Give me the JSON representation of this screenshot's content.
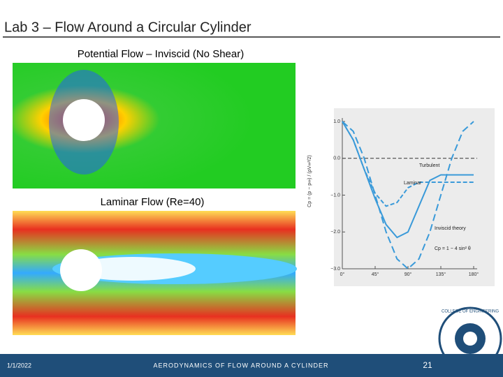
{
  "slide": {
    "title": "Lab 3 – Flow Around a Circular Cylinder",
    "panels": [
      {
        "caption": "Potential Flow – Inviscid (No Shear)"
      },
      {
        "caption": "Laminar Flow (Re=40)"
      }
    ],
    "footer": {
      "date": "1/1/2022",
      "subject": "AERODYNAMICS OF FLOW AROUND A CYLINDER",
      "page": "21"
    },
    "logo": {
      "text": "COLLEGE OF ENGINEERING"
    }
  },
  "chart_data": {
    "type": "line",
    "y_label": "Cp = (p − p∞) / (ρV∞²/2)",
    "x": [
      0,
      15,
      30,
      45,
      60,
      75,
      90,
      105,
      120,
      135,
      150,
      165,
      180
    ],
    "xlim": [
      0,
      180
    ],
    "xticks": [
      {
        "value": 0,
        "label": "0°"
      },
      {
        "value": 45,
        "label": "45°"
      },
      {
        "value": 90,
        "label": "90°"
      },
      {
        "value": 135,
        "label": "135°"
      },
      {
        "value": 180,
        "label": "180°"
      }
    ],
    "ylim": [
      -3,
      1
    ],
    "yticks": [
      {
        "value": 1,
        "label": "1.0"
      },
      {
        "value": 0,
        "label": "0.0"
      },
      {
        "value": -1,
        "label": "−1.0"
      },
      {
        "value": -2,
        "label": "−2.0"
      },
      {
        "value": -3,
        "label": "−3.0"
      }
    ],
    "series": [
      {
        "name": "Turbulent",
        "color": "#3a9ad9",
        "dash": "none",
        "values": [
          1,
          0.5,
          -0.3,
          -1.1,
          -1.8,
          -2.15,
          -2.0,
          -1.3,
          -0.6,
          -0.45,
          -0.45,
          -0.45,
          -0.45
        ]
      },
      {
        "name": "Laminar",
        "color": "#3a9ad9",
        "dash": "6 3",
        "values": [
          1,
          0.5,
          -0.3,
          -0.95,
          -1.3,
          -1.2,
          -0.8,
          -0.65,
          -0.65,
          -0.65,
          -0.65,
          -0.65,
          -0.65
        ]
      },
      {
        "name": "Inviscid theory",
        "color": "#3a9ad9",
        "dash": "10 5",
        "values": [
          1,
          0.732,
          0,
          -1,
          -2,
          -2.732,
          -3,
          -2.732,
          -2,
          -1,
          0,
          0.732,
          1
        ]
      }
    ],
    "annotations": [
      "Cp = 1 − 4 sin² θ"
    ]
  }
}
